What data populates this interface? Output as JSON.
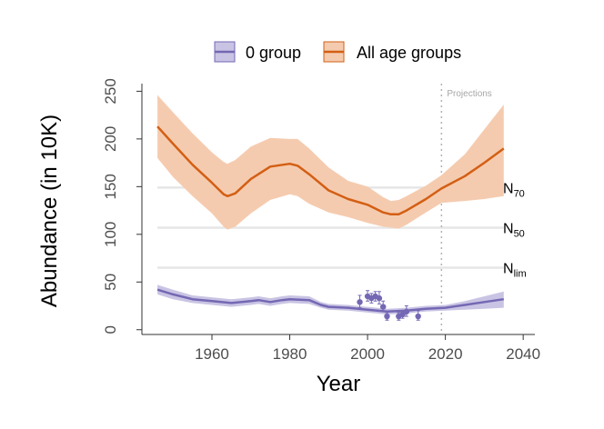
{
  "chart_data": {
    "type": "line",
    "xlabel": "Year",
    "ylabel": "Abundance (in 10K)",
    "xlim": [
      1942,
      2043
    ],
    "ylim": [
      -5,
      258
    ],
    "x_ticks": [
      1960,
      1980,
      2000,
      2020,
      2040
    ],
    "y_ticks": [
      0,
      50,
      100,
      150,
      200,
      250
    ],
    "legend_position": "top",
    "legend": [
      {
        "label": "0 group",
        "color": "#7468b4",
        "fill": "#c9c4e3"
      },
      {
        "label": "All age groups",
        "color": "#d35f14",
        "fill": "#f5cbaf"
      }
    ],
    "reference_lines": [
      {
        "base": "N",
        "sub": "70",
        "value": 149
      },
      {
        "base": "N",
        "sub": "50",
        "value": 107
      },
      {
        "base": "N",
        "sub": "lim",
        "value": 65
      }
    ],
    "projection_start": 2019,
    "projection_label": "Projections",
    "series": [
      {
        "name": "All age groups",
        "color": "#d35f14",
        "band_color": "#f5cbaf",
        "x": [
          1946,
          1950,
          1955,
          1960,
          1963,
          1964,
          1966,
          1970,
          1975,
          1980,
          1982,
          1985,
          1990,
          1995,
          2000,
          2004,
          2006,
          2008,
          2010,
          2015,
          2019,
          2025,
          2030,
          2035
        ],
        "y": [
          213,
          195,
          173,
          154,
          142,
          140,
          143,
          158,
          171,
          174,
          172,
          163,
          146,
          137,
          131,
          123,
          121,
          121,
          125,
          137,
          148,
          161,
          175,
          190
        ],
        "lower": [
          180,
          160,
          140,
          122,
          108,
          105,
          108,
          122,
          136,
          142,
          140,
          132,
          123,
          118,
          112,
          108,
          107,
          106,
          110,
          123,
          133,
          135,
          137,
          140
        ],
        "upper": [
          246,
          228,
          206,
          186,
          176,
          174,
          178,
          192,
          201,
          200,
          200,
          190,
          170,
          156,
          150,
          139,
          135,
          136,
          140,
          151,
          162,
          184,
          210,
          236
        ]
      },
      {
        "name": "0 group",
        "color": "#7468b4",
        "band_color": "#c9c4e3",
        "x": [
          1946,
          1950,
          1955,
          1960,
          1965,
          1970,
          1972,
          1975,
          1978,
          1980,
          1985,
          1988,
          1990,
          1995,
          2000,
          2005,
          2010,
          2015,
          2020,
          2025,
          2030,
          2035
        ],
        "y": [
          42,
          37,
          32,
          30,
          28,
          30,
          31,
          29,
          31,
          32,
          31,
          26,
          24,
          23,
          21,
          19,
          20,
          22,
          23,
          26,
          29,
          32
        ],
        "lower": [
          37,
          32,
          28,
          26,
          24,
          26,
          27,
          25,
          27,
          28,
          27,
          23,
          21,
          20,
          18,
          16,
          17,
          19,
          20,
          21,
          22,
          23
        ],
        "upper": [
          47,
          42,
          36,
          34,
          32,
          34,
          35,
          33,
          35,
          36,
          35,
          29,
          27,
          26,
          24,
          22,
          23,
          25,
          26,
          30,
          35,
          40
        ]
      }
    ],
    "observations": {
      "color": "#7468b4",
      "points": [
        {
          "x": 1998,
          "y": 29,
          "lo": 23,
          "hi": 36
        },
        {
          "x": 2000,
          "y": 35,
          "lo": 30,
          "hi": 41
        },
        {
          "x": 2001,
          "y": 33,
          "lo": 28,
          "hi": 38
        },
        {
          "x": 2002,
          "y": 35,
          "lo": 30,
          "hi": 40
        },
        {
          "x": 2003,
          "y": 33,
          "lo": 27,
          "hi": 40
        },
        {
          "x": 2004,
          "y": 24,
          "lo": 19,
          "hi": 30
        },
        {
          "x": 2005,
          "y": 14,
          "lo": 10,
          "hi": 18
        },
        {
          "x": 2008,
          "y": 14,
          "lo": 10,
          "hi": 18
        },
        {
          "x": 2009,
          "y": 16,
          "lo": 12,
          "hi": 20
        },
        {
          "x": 2010,
          "y": 19,
          "lo": 14,
          "hi": 25
        },
        {
          "x": 2013,
          "y": 14,
          "lo": 10,
          "hi": 20
        }
      ]
    }
  }
}
